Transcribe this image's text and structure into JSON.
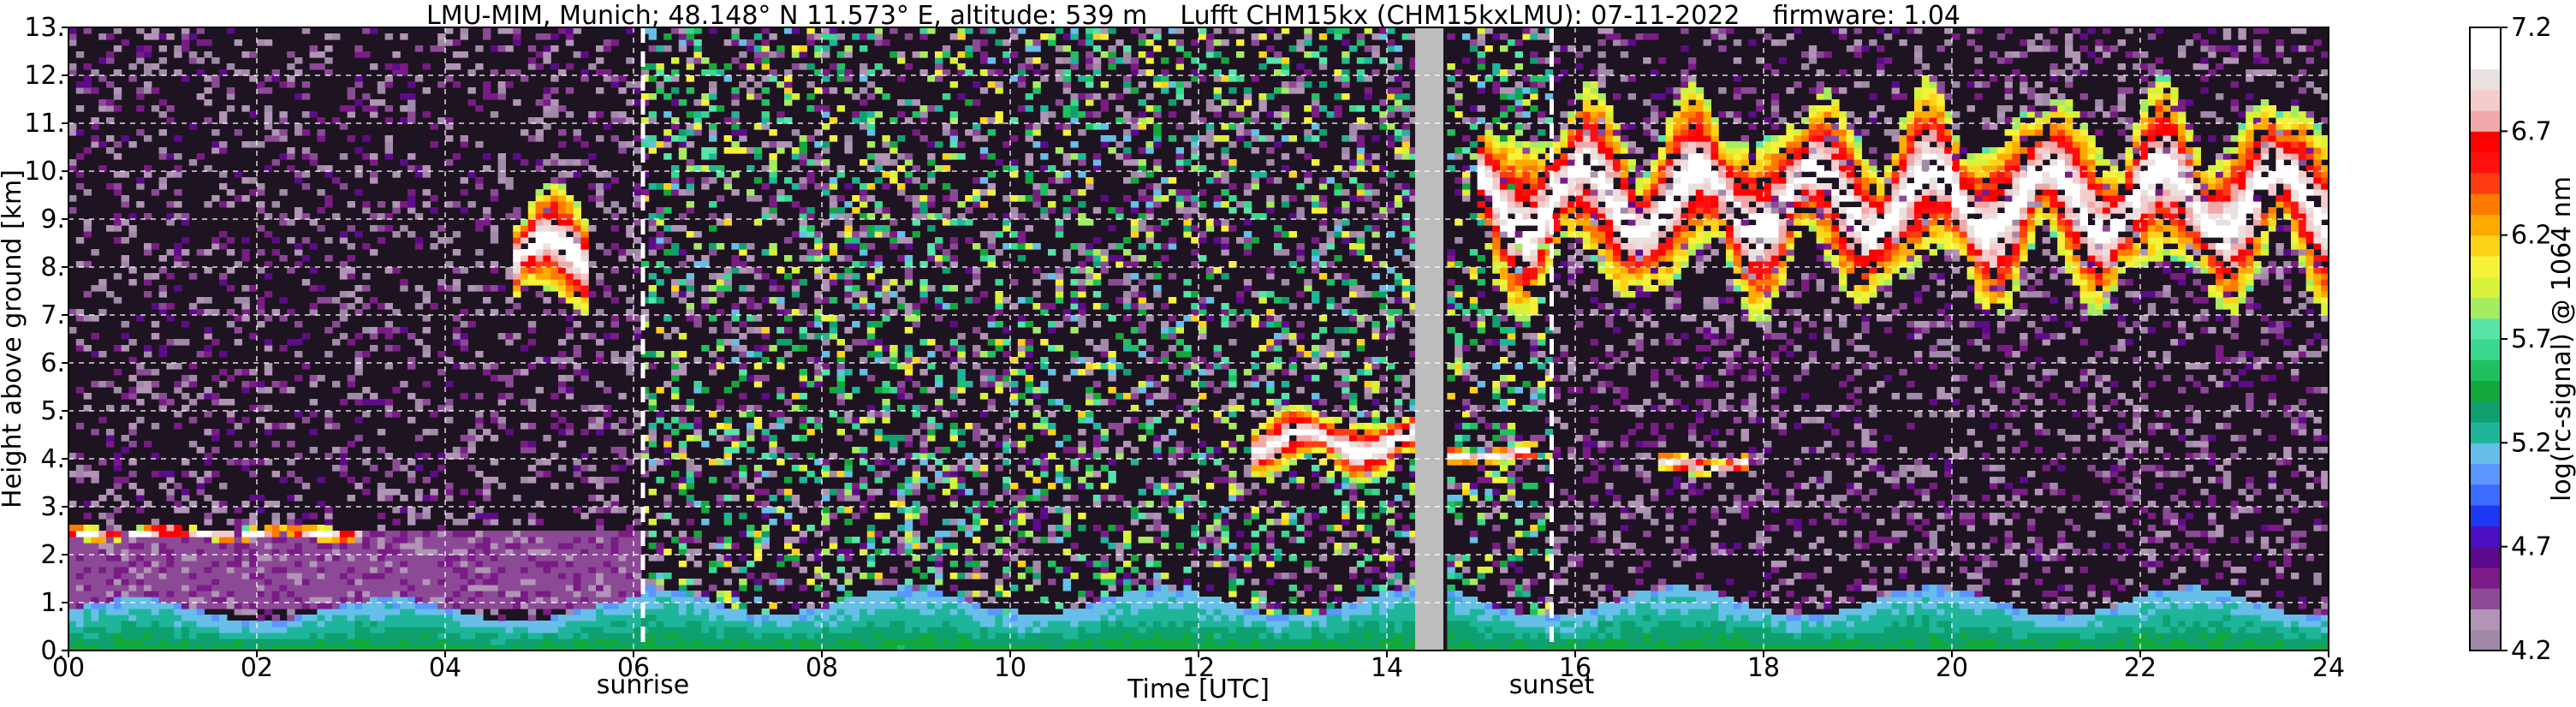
{
  "chart_data": {
    "type": "heatmap",
    "title": "LMU-MIM, Munich; 48.148° N 11.573° E, altitude: 539 m    Lufft CHM15kx (CHM15kxLMU): 07-11-2022    firmware: 1.04",
    "xlabel": "Time [UTC]",
    "ylabel": "Height above ground [km]",
    "xlim": [
      0,
      24
    ],
    "ylim": [
      0,
      13
    ],
    "x_ticks": [
      "00",
      "02",
      "04",
      "06",
      "08",
      "10",
      "12",
      "14",
      "16",
      "18",
      "20",
      "22",
      "24"
    ],
    "x_tick_values": [
      0,
      2,
      4,
      6,
      8,
      10,
      12,
      14,
      16,
      18,
      20,
      22,
      24
    ],
    "y_ticks": [
      "0.",
      "1.",
      "2.",
      "3.",
      "4.",
      "5.",
      "6.",
      "7.",
      "8.",
      "9.",
      "10.",
      "11.",
      "12.",
      "13."
    ],
    "y_tick_values": [
      0,
      1,
      2,
      3,
      4,
      5,
      6,
      7,
      8,
      9,
      10,
      11,
      12,
      13
    ],
    "grid": true,
    "colorbar": {
      "label": "log(rc-signal) @ 1064 nm",
      "range": [
        4.2,
        7.2
      ],
      "ticks": [
        "4.2",
        "4.7",
        "5.2",
        "5.7",
        "6.2",
        "6.7",
        "7.2"
      ],
      "tick_values": [
        4.2,
        4.7,
        5.2,
        5.7,
        6.2,
        6.7,
        7.2
      ]
    },
    "annotations": [
      {
        "text": "sunrise",
        "x": 6.1
      },
      {
        "text": "sunset",
        "x": 15.75
      }
    ],
    "data_gap": [
      14.3,
      14.6
    ],
    "features": [
      {
        "kind": "boundary-layer",
        "x": [
          0,
          6.1
        ],
        "top_km": 1.0
      },
      {
        "kind": "residual-layer",
        "x": [
          0,
          6.1
        ],
        "top_km": 2.5
      },
      {
        "kind": "low-cloud",
        "x": [
          0,
          3.1
        ],
        "base_km": 2.3,
        "top_km": 2.6
      },
      {
        "kind": "cirrus-patch",
        "x": [
          4.7,
          5.5
        ],
        "base_km": 7.0,
        "top_km": 9.4
      },
      {
        "kind": "boundary-layer",
        "x": [
          6.1,
          24
        ],
        "top_km": 1.2
      },
      {
        "kind": "mid-level-cloud",
        "x": [
          12.6,
          14.3
        ],
        "base_km": 3.7,
        "top_km": 5.0
      },
      {
        "kind": "mid-level-cloud",
        "x": [
          14.6,
          15.6
        ],
        "base_km": 3.9,
        "top_km": 4.3
      },
      {
        "kind": "cirrus",
        "x": [
          15.0,
          24
        ],
        "base_km": 7.5,
        "top_km": 11.3
      },
      {
        "kind": "mid-level-cloud",
        "x": [
          16.9,
          17.8
        ],
        "base_km": 3.7,
        "top_km": 4.1
      }
    ]
  },
  "colors": {
    "palette": [
      "#a08aa8",
      "#b194b6",
      "#8c4a96",
      "#7a1b86",
      "#5e0a8c",
      "#4a10c0",
      "#1d38f0",
      "#3c6cff",
      "#5a96ff",
      "#66bfe8",
      "#1fb59a",
      "#0fa070",
      "#13a83a",
      "#20c060",
      "#39d890",
      "#56e4a8",
      "#a6ec60",
      "#d8f23a",
      "#f6f23a",
      "#ffd21a",
      "#ffaa00",
      "#ff7a00",
      "#ff3d10",
      "#ff1010",
      "#ff0000",
      "#f0a8a8",
      "#f4cccc",
      "#ebe0e0",
      "#ffffff",
      "#ffffff"
    ],
    "background": "#1e1320",
    "gap": "#bdbdbd"
  }
}
